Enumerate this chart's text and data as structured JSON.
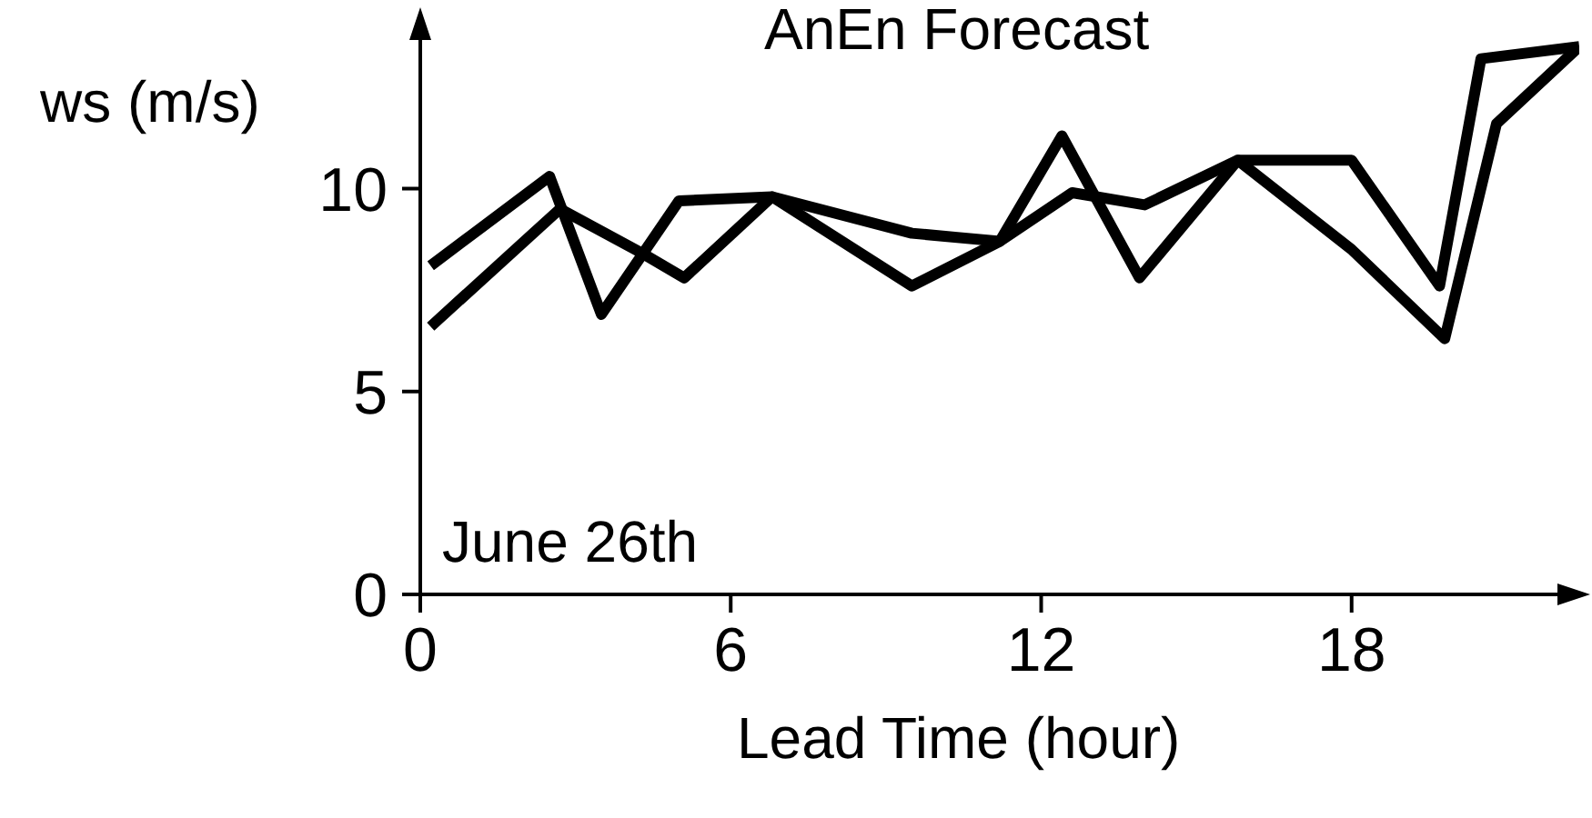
{
  "chart_data": {
    "type": "line",
    "title": "AnEn Forecast",
    "xlabel": "Lead Time (hour)",
    "ylabel": "ws (m/s)",
    "annotations": [
      "June 26th"
    ],
    "xlim": [
      0,
      22.4
    ],
    "xticks": [
      0,
      6,
      12,
      18
    ],
    "ylim": [
      0,
      14.2
    ],
    "yticks": [
      0,
      5,
      10
    ],
    "grid": false,
    "legend": false,
    "marker": "none",
    "line_style": "solid",
    "series": [
      {
        "color": "#000000",
        "x": [
          0.2,
          2.5,
          3.5,
          5,
          6.8,
          9.5,
          11.2,
          12.4,
          13.9,
          15.8,
          18,
          19.7,
          20.5,
          22.4
        ],
        "values": [
          8.1,
          10.3,
          6.9,
          9.7,
          9.8,
          7.6,
          8.7,
          11.3,
          7.8,
          10.7,
          10.7,
          7.6,
          13.2,
          13.5
        ]
      },
      {
        "color": "#000000",
        "x": [
          0.2,
          2.7,
          4.3,
          5.1,
          6.8,
          9.5,
          11.2,
          12.6,
          14,
          15.8,
          18,
          19.8,
          20.8,
          22.4
        ],
        "values": [
          6.6,
          9.5,
          8.4,
          7.8,
          9.8,
          8.9,
          8.7,
          9.9,
          9.6,
          10.7,
          8.5,
          6.3,
          11.6,
          13.5
        ]
      }
    ]
  }
}
